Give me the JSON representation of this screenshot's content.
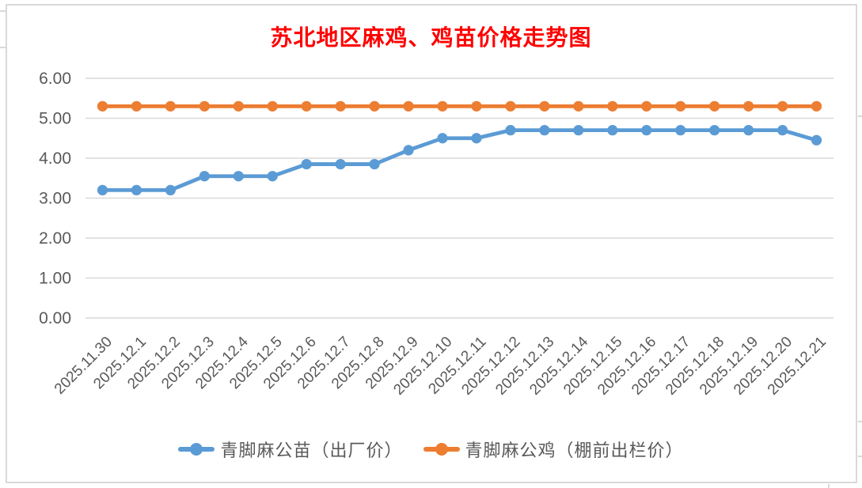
{
  "chart": {
    "title": "苏北地区麻鸡、鸡苗价格走势图",
    "title_color": "#FF0000"
  },
  "chart_data": {
    "type": "line",
    "title": "苏北地区麻鸡、鸡苗价格走势图",
    "categories": [
      "2025.11.30",
      "2025.12.1",
      "2025.12.2",
      "2025.12.3",
      "2025.12.4",
      "2025.12.5",
      "2025.12.6",
      "2025.12.7",
      "2025.12.8",
      "2025.12.9",
      "2025.12.10",
      "2025.12.11",
      "2025.12.12",
      "2025.12.13",
      "2025.12.14",
      "2025.12.15",
      "2025.12.16",
      "2025.12.17",
      "2025.12.18",
      "2025.12.19",
      "2025.12.20",
      "2025.12.21"
    ],
    "series": [
      {
        "name": "青脚麻公苗（出厂价）",
        "color": "#5B9BD5",
        "values": [
          3.2,
          3.2,
          3.2,
          3.55,
          3.55,
          3.55,
          3.85,
          3.85,
          3.85,
          4.2,
          4.5,
          4.5,
          4.7,
          4.7,
          4.7,
          4.7,
          4.7,
          4.7,
          4.7,
          4.7,
          4.7,
          4.45
        ]
      },
      {
        "name": "青脚麻公鸡（棚前出栏价）",
        "color": "#ED7D31",
        "values": [
          5.3,
          5.3,
          5.3,
          5.3,
          5.3,
          5.3,
          5.3,
          5.3,
          5.3,
          5.3,
          5.3,
          5.3,
          5.3,
          5.3,
          5.3,
          5.3,
          5.3,
          5.3,
          5.3,
          5.3,
          5.3,
          5.3
        ]
      }
    ],
    "y_ticks": [
      "0.00",
      "1.00",
      "2.00",
      "3.00",
      "4.00",
      "5.00",
      "6.00"
    ],
    "ylim": [
      0,
      6
    ],
    "xlabel": "",
    "ylabel": "",
    "grid": true,
    "legend_position": "bottom",
    "axis_label_color": "#595959",
    "gridline_color": "#D9D9D9"
  }
}
